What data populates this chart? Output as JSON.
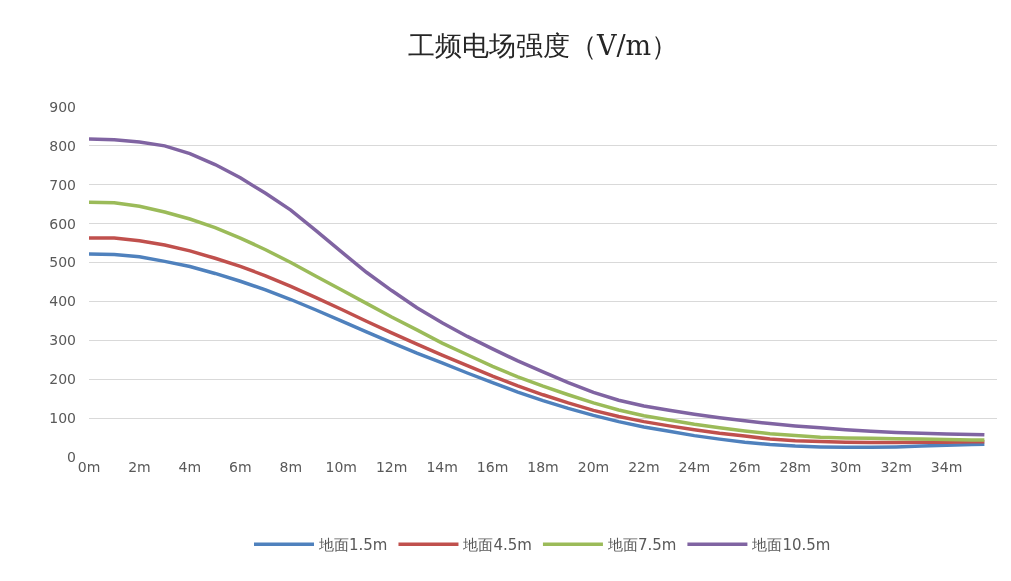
{
  "chart_data": {
    "type": "line",
    "title": "工频电场强度（V/m）",
    "x": [
      0,
      1,
      2,
      3,
      4,
      5,
      6,
      7,
      8,
      9,
      10,
      11,
      12,
      13,
      14,
      15,
      16,
      17,
      18,
      19,
      20,
      21,
      22,
      23,
      24,
      25,
      26,
      27,
      28,
      29,
      30,
      31,
      32,
      33,
      34,
      35,
      35.5
    ],
    "xlim": [
      0,
      36
    ],
    "xticks": [
      {
        "value": 0,
        "label": "0m"
      },
      {
        "value": 2,
        "label": "2m"
      },
      {
        "value": 4,
        "label": "4m"
      },
      {
        "value": 6,
        "label": "6m"
      },
      {
        "value": 8,
        "label": "8m"
      },
      {
        "value": 10,
        "label": "10m"
      },
      {
        "value": 12,
        "label": "12m"
      },
      {
        "value": 14,
        "label": "14m"
      },
      {
        "value": 16,
        "label": "16m"
      },
      {
        "value": 18,
        "label": "18m"
      },
      {
        "value": 20,
        "label": "20m"
      },
      {
        "value": 22,
        "label": "22m"
      },
      {
        "value": 24,
        "label": "24m"
      },
      {
        "value": 26,
        "label": "26m"
      },
      {
        "value": 28,
        "label": "28m"
      },
      {
        "value": 30,
        "label": "30m"
      },
      {
        "value": 32,
        "label": "32m"
      },
      {
        "value": 34,
        "label": "34m"
      }
    ],
    "ylim": [
      0,
      900
    ],
    "yticks": [
      0,
      100,
      200,
      300,
      400,
      500,
      600,
      700,
      800,
      900
    ],
    "grid": "y",
    "legend": "bottom",
    "marker": "none",
    "line_style": "solid",
    "series": [
      {
        "name": "地面1.5m",
        "color": "#4f81bd",
        "values": [
          522,
          521,
          515,
          503,
          490,
          472,
          452,
          430,
          405,
          378,
          350,
          322,
          294,
          267,
          242,
          216,
          191,
          167,
          145,
          125,
          107,
          91,
          77,
          66,
          55,
          46,
          38,
          32,
          28,
          26,
          25,
          25,
          26,
          28,
          30,
          32,
          33
        ]
      },
      {
        "name": "地面4.5m",
        "color": "#c0504d",
        "values": [
          563,
          563,
          556,
          545,
          530,
          511,
          490,
          466,
          439,
          410,
          380,
          349,
          319,
          290,
          262,
          235,
          208,
          183,
          160,
          139,
          120,
          104,
          91,
          80,
          70,
          61,
          54,
          46,
          42,
          40,
          38,
          37,
          37,
          38,
          38,
          39,
          39
        ]
      },
      {
        "name": "地面7.5m",
        "color": "#9bbb59",
        "values": [
          655,
          654,
          645,
          630,
          612,
          590,
          563,
          533,
          500,
          465,
          430,
          395,
          360,
          327,
          293,
          263,
          233,
          206,
          182,
          160,
          139,
          121,
          106,
          95,
          84,
          75,
          67,
          60,
          55,
          51,
          49,
          48,
          47,
          46,
          45,
          44,
          44
        ]
      },
      {
        "name": "地面10.5m",
        "color": "#8064a2",
        "values": [
          818,
          816,
          810,
          800,
          780,
          752,
          718,
          678,
          635,
          582,
          528,
          475,
          428,
          384,
          345,
          310,
          278,
          247,
          219,
          191,
          166,
          146,
          131,
          120,
          110,
          101,
          93,
          86,
          80,
          75,
          70,
          66,
          63,
          61,
          59,
          58,
          57
        ]
      }
    ]
  }
}
